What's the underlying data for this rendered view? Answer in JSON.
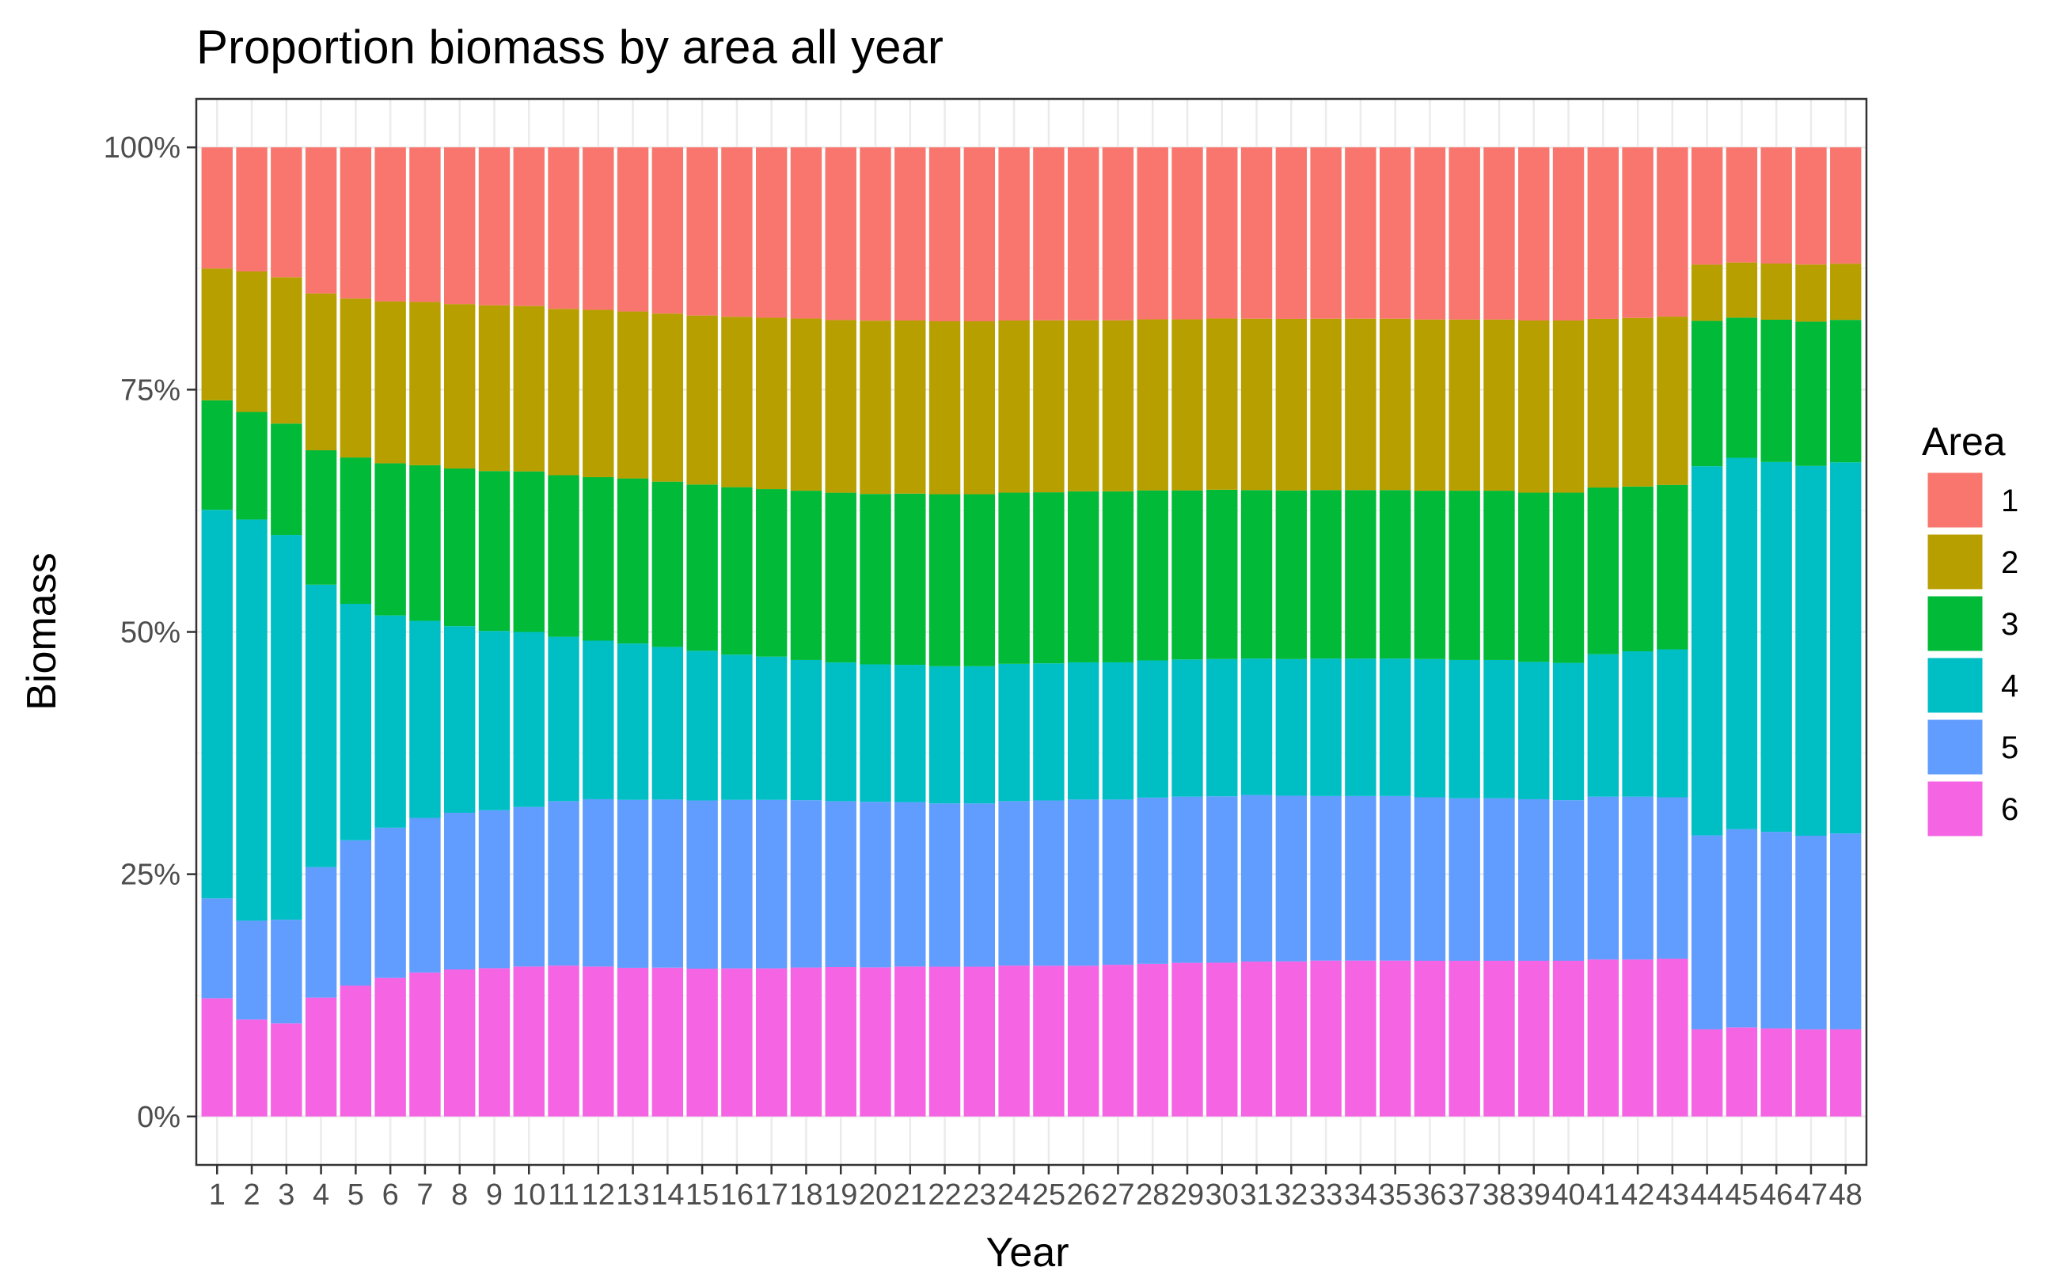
{
  "chart_data": {
    "type": "bar",
    "stacked": true,
    "normalized": true,
    "title": "Proportion biomass by area all year",
    "xlabel": "Year",
    "ylabel": "Biomass",
    "ylim": [
      0,
      1
    ],
    "yticks": [
      "0%",
      "25%",
      "50%",
      "75%",
      "100%"
    ],
    "yticks_values": [
      0,
      0.25,
      0.5,
      0.75,
      1
    ],
    "categories": [
      "1",
      "2",
      "3",
      "4",
      "5",
      "6",
      "7",
      "8",
      "9",
      "10",
      "11",
      "12",
      "13",
      "14",
      "15",
      "16",
      "17",
      "18",
      "19",
      "20",
      "21",
      "22",
      "23",
      "24",
      "25",
      "26",
      "27",
      "28",
      "29",
      "30",
      "31",
      "32",
      "33",
      "34",
      "35",
      "36",
      "37",
      "38",
      "39",
      "40",
      "41",
      "42",
      "43",
      "44",
      "45",
      "46",
      "47",
      "48"
    ],
    "legend": {
      "title": "Area",
      "position": "right"
    },
    "grid": true,
    "theme": "bw",
    "series": [
      {
        "name": "1",
        "color": "#F8766D",
        "values": [
          0.125,
          0.128,
          0.134,
          0.15,
          0.156,
          0.159,
          0.16,
          0.162,
          0.163,
          0.164,
          0.167,
          0.168,
          0.17,
          0.172,
          0.174,
          0.175,
          0.176,
          0.177,
          0.178,
          0.179,
          0.179,
          0.18,
          0.18,
          0.179,
          0.179,
          0.179,
          0.179,
          0.178,
          0.178,
          0.177,
          0.177,
          0.177,
          0.177,
          0.177,
          0.177,
          0.178,
          0.178,
          0.178,
          0.179,
          0.179,
          0.177,
          0.176,
          0.175,
          0.121,
          0.119,
          0.12,
          0.121,
          0.12
        ]
      },
      {
        "name": "2",
        "color": "#B79F00",
        "values": [
          0.136,
          0.145,
          0.151,
          0.161,
          0.164,
          0.167,
          0.169,
          0.17,
          0.171,
          0.171,
          0.172,
          0.173,
          0.173,
          0.174,
          0.175,
          0.176,
          0.177,
          0.178,
          0.178,
          0.179,
          0.179,
          0.179,
          0.179,
          0.178,
          0.178,
          0.177,
          0.177,
          0.177,
          0.177,
          0.177,
          0.177,
          0.177,
          0.177,
          0.177,
          0.177,
          0.177,
          0.177,
          0.177,
          0.178,
          0.178,
          0.174,
          0.174,
          0.174,
          0.058,
          0.057,
          0.058,
          0.059,
          0.058
        ]
      },
      {
        "name": "3",
        "color": "#00BA38",
        "values": [
          0.113,
          0.111,
          0.115,
          0.138,
          0.151,
          0.157,
          0.161,
          0.163,
          0.165,
          0.166,
          0.167,
          0.169,
          0.171,
          0.171,
          0.172,
          0.173,
          0.173,
          0.175,
          0.175,
          0.176,
          0.177,
          0.178,
          0.178,
          0.177,
          0.177,
          0.177,
          0.177,
          0.176,
          0.175,
          0.175,
          0.174,
          0.174,
          0.174,
          0.174,
          0.174,
          0.174,
          0.175,
          0.175,
          0.175,
          0.176,
          0.172,
          0.17,
          0.17,
          0.15,
          0.145,
          0.147,
          0.149,
          0.147
        ]
      },
      {
        "name": "4",
        "color": "#00BFC4",
        "values": [
          0.401,
          0.414,
          0.397,
          0.29,
          0.244,
          0.219,
          0.204,
          0.193,
          0.185,
          0.181,
          0.17,
          0.164,
          0.162,
          0.158,
          0.155,
          0.15,
          0.148,
          0.145,
          0.143,
          0.142,
          0.142,
          0.142,
          0.142,
          0.142,
          0.142,
          0.142,
          0.142,
          0.142,
          0.142,
          0.142,
          0.141,
          0.141,
          0.142,
          0.142,
          0.142,
          0.143,
          0.143,
          0.143,
          0.142,
          0.142,
          0.147,
          0.15,
          0.153,
          0.381,
          0.384,
          0.382,
          0.382,
          0.383
        ]
      },
      {
        "name": "5",
        "color": "#619CFF",
        "values": [
          0.103,
          0.102,
          0.107,
          0.134,
          0.15,
          0.155,
          0.16,
          0.162,
          0.163,
          0.165,
          0.17,
          0.173,
          0.174,
          0.174,
          0.174,
          0.174,
          0.174,
          0.173,
          0.171,
          0.171,
          0.17,
          0.169,
          0.169,
          0.17,
          0.171,
          0.172,
          0.171,
          0.172,
          0.172,
          0.172,
          0.172,
          0.171,
          0.17,
          0.17,
          0.17,
          0.169,
          0.168,
          0.168,
          0.167,
          0.166,
          0.168,
          0.168,
          0.167,
          0.2,
          0.205,
          0.203,
          0.2,
          0.202
        ]
      },
      {
        "name": "6",
        "color": "#F564E3",
        "values": [
          0.122,
          0.1,
          0.096,
          0.122,
          0.135,
          0.143,
          0.149,
          0.152,
          0.153,
          0.155,
          0.156,
          0.155,
          0.154,
          0.154,
          0.153,
          0.153,
          0.153,
          0.154,
          0.154,
          0.154,
          0.155,
          0.155,
          0.155,
          0.156,
          0.156,
          0.156,
          0.157,
          0.158,
          0.159,
          0.159,
          0.16,
          0.16,
          0.161,
          0.161,
          0.161,
          0.161,
          0.161,
          0.161,
          0.161,
          0.161,
          0.162,
          0.162,
          0.163,
          0.09,
          0.092,
          0.091,
          0.09,
          0.09
        ]
      }
    ]
  }
}
